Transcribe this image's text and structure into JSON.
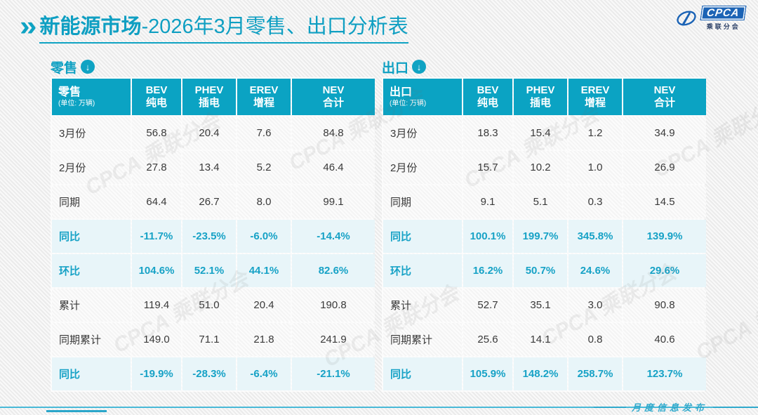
{
  "page": {
    "title_bold": "新能源市场",
    "title_rest": "-2026年3月零售、出口分析表",
    "footer_text": "月度信息发布",
    "watermark_text": "CPCA 乘联分会"
  },
  "logo": {
    "name": "CPCA",
    "sub": "乘联分会",
    "brand_color": "#1b63b5"
  },
  "colors": {
    "accent_teal": "#0fa3c3",
    "highlight_row_bg": "#e8f5f9",
    "highlight_text": "#17a2c6",
    "normal_row_bg": "#f8f8f8"
  },
  "chart_data": [
    {
      "type": "table",
      "title": "零售",
      "unit_note": "(单位: 万辆)",
      "columns": [
        {
          "en": "BEV",
          "zh": "纯电"
        },
        {
          "en": "PHEV",
          "zh": "插电"
        },
        {
          "en": "EREV",
          "zh": "增程"
        },
        {
          "en": "NEV",
          "zh": "合计"
        }
      ],
      "rows": [
        {
          "label": "3月份",
          "values": [
            "56.8",
            "20.4",
            "7.6",
            "84.8"
          ],
          "highlight": false
        },
        {
          "label": "2月份",
          "values": [
            "27.8",
            "13.4",
            "5.2",
            "46.4"
          ],
          "highlight": false
        },
        {
          "label": "同期",
          "values": [
            "64.4",
            "26.7",
            "8.0",
            "99.1"
          ],
          "highlight": false
        },
        {
          "label": "同比",
          "values": [
            "-11.7%",
            "-23.5%",
            "-6.0%",
            "-14.4%"
          ],
          "highlight": true
        },
        {
          "label": "环比",
          "values": [
            "104.6%",
            "52.1%",
            "44.1%",
            "82.6%"
          ],
          "highlight": true
        },
        {
          "label": "累计",
          "values": [
            "119.4",
            "51.0",
            "20.4",
            "190.8"
          ],
          "highlight": false
        },
        {
          "label": "同期累计",
          "values": [
            "149.0",
            "71.1",
            "21.8",
            "241.9"
          ],
          "highlight": false
        },
        {
          "label": "同比",
          "values": [
            "-19.9%",
            "-28.3%",
            "-6.4%",
            "-21.1%"
          ],
          "highlight": true
        }
      ]
    },
    {
      "type": "table",
      "title": "出口",
      "unit_note": "(单位: 万辆)",
      "columns": [
        {
          "en": "BEV",
          "zh": "纯电"
        },
        {
          "en": "PHEV",
          "zh": "插电"
        },
        {
          "en": "EREV",
          "zh": "增程"
        },
        {
          "en": "NEV",
          "zh": "合计"
        }
      ],
      "rows": [
        {
          "label": "3月份",
          "values": [
            "18.3",
            "15.4",
            "1.2",
            "34.9"
          ],
          "highlight": false
        },
        {
          "label": "2月份",
          "values": [
            "15.7",
            "10.2",
            "1.0",
            "26.9"
          ],
          "highlight": false
        },
        {
          "label": "同期",
          "values": [
            "9.1",
            "5.1",
            "0.3",
            "14.5"
          ],
          "highlight": false
        },
        {
          "label": "同比",
          "values": [
            "100.1%",
            "199.7%",
            "345.8%",
            "139.9%"
          ],
          "highlight": true
        },
        {
          "label": "环比",
          "values": [
            "16.2%",
            "50.7%",
            "24.6%",
            "29.6%"
          ],
          "highlight": true
        },
        {
          "label": "累计",
          "values": [
            "52.7",
            "35.1",
            "3.0",
            "90.8"
          ],
          "highlight": false
        },
        {
          "label": "同期累计",
          "values": [
            "25.6",
            "14.1",
            "0.8",
            "40.6"
          ],
          "highlight": false
        },
        {
          "label": "同比",
          "values": [
            "105.9%",
            "148.2%",
            "258.7%",
            "123.7%"
          ],
          "highlight": true
        }
      ]
    }
  ]
}
